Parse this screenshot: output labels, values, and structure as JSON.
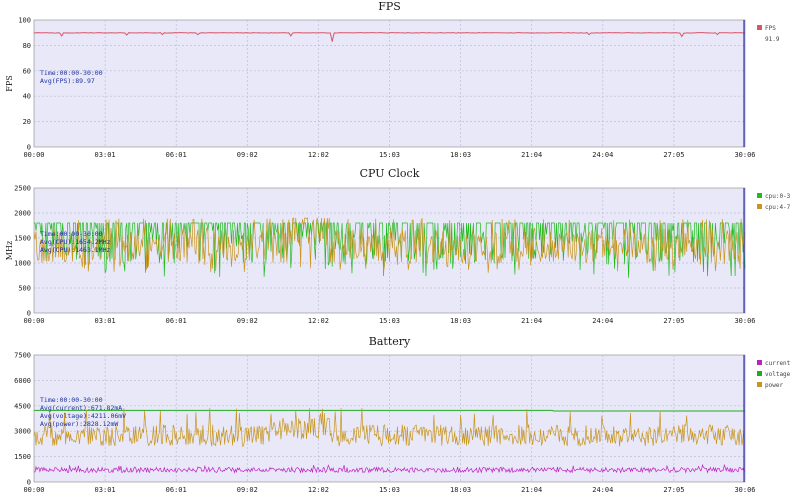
{
  "colors": {
    "plot_bg": "#e8e8f8",
    "grid": "#bdbdd6",
    "cursor": "#3030c0",
    "fps": "#d8556a",
    "cpu_big": "#22bb22",
    "cpu_little": "#c89620",
    "current": "#c020c0",
    "voltage": "#22aa22",
    "power": "#c89620"
  },
  "x_ticks": [
    "00:00",
    "03:01",
    "06:01",
    "09:02",
    "12:02",
    "15:03",
    "18:03",
    "21:04",
    "24:04",
    "27:05",
    "30:06"
  ],
  "chart_data": [
    {
      "type": "line",
      "title": "FPS",
      "ylabel": "FPS",
      "ylim": [
        0,
        100
      ],
      "y_ticks": [
        "0",
        "20",
        "40",
        "60",
        "80",
        "100"
      ],
      "x_range": [
        "00:00",
        "30:06"
      ],
      "grid": true,
      "legend_placement": "right",
      "legend": [
        "FPS",
        "91.9"
      ],
      "annotation": [
        "Time:00:00-30:00",
        "Avg(FPS):89.97"
      ],
      "series": [
        {
          "name": "FPS",
          "baseline": 89.9,
          "dips": [
            {
              "t": 0.04,
              "value": 87.5
            },
            {
              "t": 0.13,
              "value": 88.2
            },
            {
              "t": 0.18,
              "value": 88.5
            },
            {
              "t": 0.23,
              "value": 88.5
            },
            {
              "t": 0.36,
              "value": 87.5
            },
            {
              "t": 0.42,
              "value": 83.0
            },
            {
              "t": 0.78,
              "value": 88.5
            },
            {
              "t": 0.91,
              "value": 87.0
            },
            {
              "t": 0.96,
              "value": 88.5
            }
          ]
        }
      ]
    },
    {
      "type": "line",
      "title": "CPU Clock",
      "ylabel": "MHz",
      "ylim": [
        0,
        2500
      ],
      "y_ticks": [
        "0",
        "500",
        "1000",
        "1500",
        "2000",
        "2500"
      ],
      "x_range": [
        "00:00",
        "30:06"
      ],
      "grid": true,
      "legend_placement": "right",
      "annotation": [
        "Time:00:00-30:00",
        "Avg(CPU):1654.2MHz",
        "Avg(CPU):1463.1MHz"
      ],
      "series": [
        {
          "name": "cpu:0-3",
          "approx_range": [
            700,
            1800
          ],
          "typical": 1800
        },
        {
          "name": "cpu:4-7",
          "approx_range": [
            700,
            1900
          ],
          "typical": 1400
        }
      ]
    },
    {
      "type": "line",
      "title": "Battery",
      "ylim": [
        0,
        7500
      ],
      "y_ticks": [
        "0",
        "1500",
        "3000",
        "4500",
        "6000",
        "7500"
      ],
      "x_range": [
        "00:00",
        "30:06"
      ],
      "grid": true,
      "legend_placement": "right",
      "annotation": [
        "Time:00:00-30:00",
        "Avg(current):671.82mA",
        "Avg(voltage):4211.06mV",
        "Avg(power):2828.12mW"
      ],
      "series": [
        {
          "name": "current",
          "approx_range": [
            450,
            950
          ],
          "average": 671.82
        },
        {
          "name": "voltage",
          "approx_range": [
            4150,
            4250
          ],
          "average": 4211.06
        },
        {
          "name": "power",
          "approx_range": [
            1500,
            4500
          ],
          "average": 2828.12
        }
      ]
    }
  ]
}
